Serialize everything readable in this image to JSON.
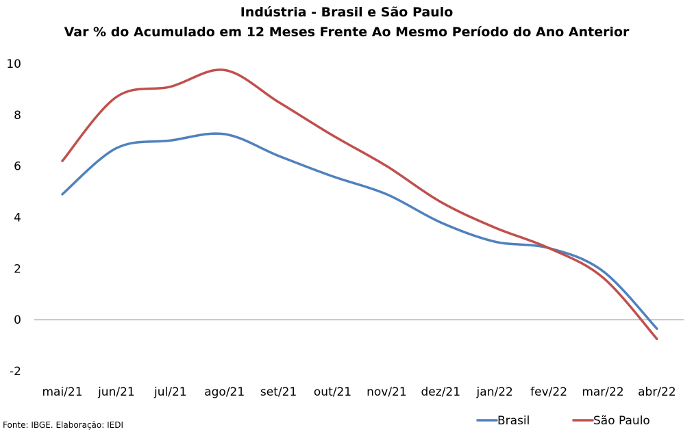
{
  "chart_data": {
    "type": "line",
    "title": "Indústria - Brasil e São Paulo",
    "subtitle": "Var % do Acumulado em 12 Meses Frente Ao Mesmo Período do Ano Anterior",
    "xlabel": "",
    "ylabel": "",
    "categories": [
      "mai/21",
      "jun/21",
      "jul/21",
      "ago/21",
      "set/21",
      "out/21",
      "nov/21",
      "dez/21",
      "jan/22",
      "fev/22",
      "mar/22",
      "abr/22"
    ],
    "series": [
      {
        "name": "Brasil",
        "color": "#4F81BD",
        "values": [
          4.9,
          6.7,
          7.0,
          7.25,
          6.4,
          5.6,
          4.9,
          3.8,
          3.05,
          2.8,
          1.9,
          -0.35
        ]
      },
      {
        "name": "São Paulo",
        "color": "#C0504D",
        "values": [
          6.2,
          8.7,
          9.1,
          9.75,
          8.5,
          7.2,
          6.0,
          4.6,
          3.6,
          2.8,
          1.65,
          -0.75
        ]
      }
    ],
    "ylim": [
      -2,
      10
    ],
    "yticks": [
      -2,
      0,
      2,
      4,
      6,
      8,
      10
    ],
    "legend_position": "bottom-right",
    "grid": false
  },
  "source_note": "Fonte: IBGE. Elaboração: IEDI"
}
